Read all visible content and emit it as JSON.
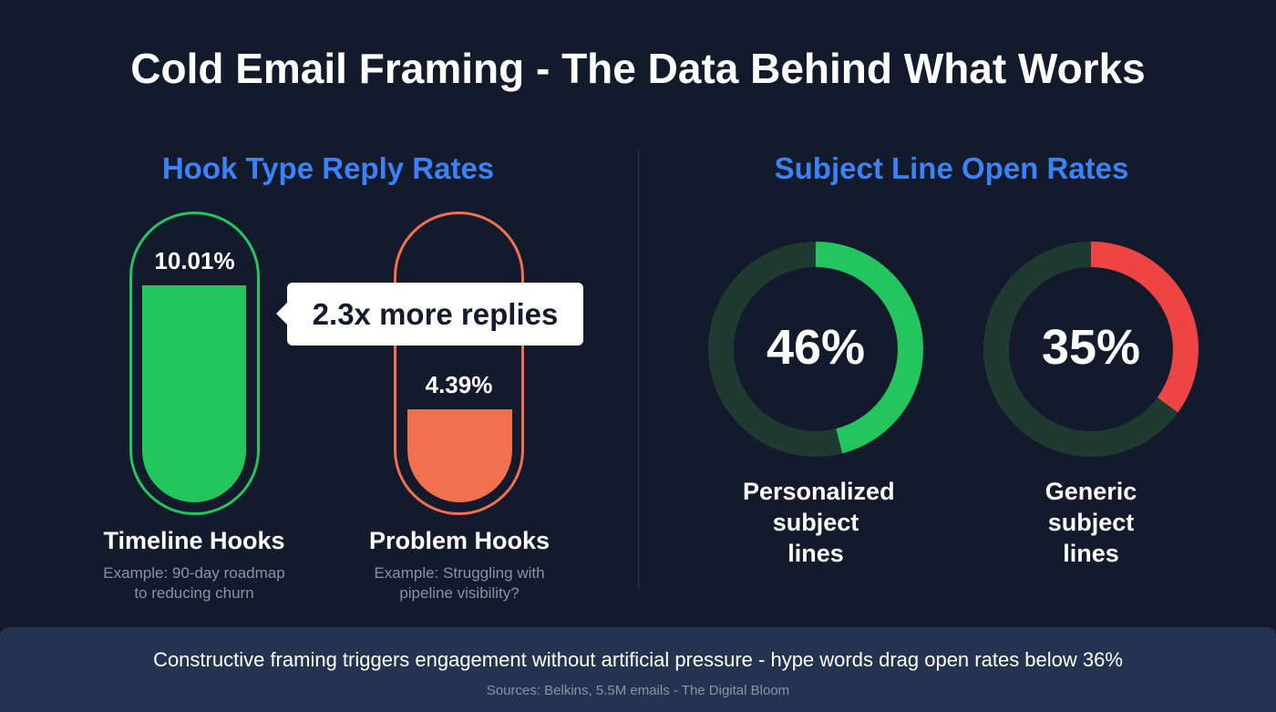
{
  "title": "Cold Email Framing - The Data Behind What Works",
  "colors": {
    "green": "#22c55e",
    "orange": "#f07050",
    "red": "#ef4444",
    "track": "#1f3a30",
    "accent": "#3b82f6"
  },
  "chart_data": [
    {
      "type": "bar",
      "title": "Hook Type Reply Rates",
      "categories": [
        "Timeline Hooks",
        "Problem Hooks"
      ],
      "values": [
        10.01,
        4.39
      ],
      "value_labels": [
        "10.01%",
        "4.39%"
      ],
      "examples": [
        "Example: 90-day roadmap to reducing churn",
        "Example: Struggling with pipeline visibility?"
      ],
      "annotation": "2.3x more replies",
      "unit": "%"
    },
    {
      "type": "pie",
      "title": "Subject Line Open Rates",
      "categories": [
        "Personalized subject lines",
        "Generic subject lines"
      ],
      "values": [
        46,
        35
      ],
      "value_labels": [
        "46%",
        "35%"
      ],
      "unit": "%"
    }
  ],
  "footer": {
    "summary": "Constructive framing triggers engagement without artificial pressure - hype words drag open rates below 36%",
    "sources": "Sources: Belkins, 5.5M emails - The Digital Bloom"
  }
}
